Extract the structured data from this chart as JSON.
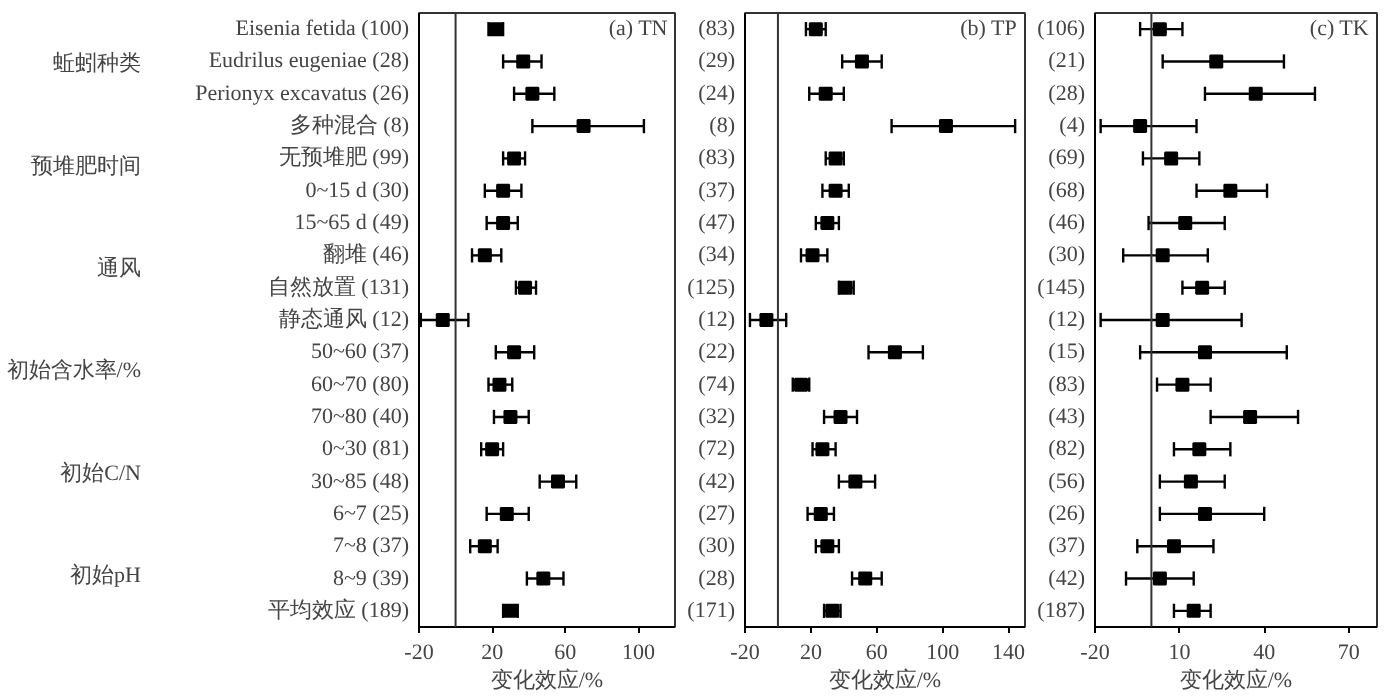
{
  "chart_data": [
    {
      "type": "scatter",
      "orientation": "horizontal",
      "xlabel": "变化效应/%",
      "marker": "square",
      "annotations": [
        "(a) TN",
        "蚯蚓种类",
        "预堆肥时间",
        "通风",
        "初始含水率/%",
        "初始C/N",
        "初始pH"
      ],
      "categories": [
        "Eisenia fetida (100)",
        "Eudrilus eugeniae (28)",
        "Perionyx excavatus (26)",
        "多种混合 (8)",
        "无预堆肥 (99)",
        "0~15 d (30)",
        "15~65 d (49)",
        "翻堆 (46)",
        "自然放置 (131)",
        "静态通风 (12)",
        "50~60 (37)",
        "60~70 (80)",
        "70~80 (40)",
        "0~30 (81)",
        "30~85 (48)",
        "6~7 (25)",
        "7~8 (37)",
        "8~9 (39)",
        "平均效应 (189)"
      ],
      "series": [
        {
          "color": "#000000",
          "values": [
            22,
            37,
            42,
            70,
            32,
            26,
            26,
            16,
            38,
            -7,
            32,
            24,
            30,
            20,
            56,
            28,
            16,
            48,
            30
          ],
          "errors": [
            [
              18,
              26
            ],
            [
              26,
              47
            ],
            [
              32,
              54
            ],
            [
              42,
              103
            ],
            [
              26,
              38
            ],
            [
              16,
              36
            ],
            [
              17,
              34
            ],
            [
              9,
              25
            ],
            [
              33,
              44
            ],
            [
              -19,
              7
            ],
            [
              22,
              43
            ],
            [
              18,
              31
            ],
            [
              21,
              40
            ],
            [
              14,
              26
            ],
            [
              46,
              66
            ],
            [
              17,
              40
            ],
            [
              8,
              23
            ],
            [
              39,
              59
            ],
            [
              26,
              34
            ]
          ]
        }
      ],
      "xlim": [
        -20,
        120
      ],
      "xticks": [
        -20,
        20,
        60,
        100
      ],
      "ref_lines": [
        {
          "axis": "x",
          "value": 0
        }
      ]
    },
    {
      "type": "scatter",
      "orientation": "horizontal",
      "annotations": [
        "(b) TP"
      ],
      "xlabel": "变化效应/%",
      "marker": "square",
      "categories": [
        "(83)",
        "(29)",
        "(24)",
        "(8)",
        "(83)",
        "(37)",
        "(47)",
        "(34)",
        "(125)",
        "(12)",
        "(22)",
        "(74)",
        "(32)",
        "(72)",
        "(42)",
        "(27)",
        "(30)",
        "(28)",
        "(171)"
      ],
      "series": [
        {
          "color": "#000000",
          "values": [
            23,
            51,
            29,
            102,
            35,
            35,
            30,
            21,
            41,
            -7,
            71,
            14,
            38,
            27,
            47,
            26,
            30,
            53,
            33
          ],
          "errors": [
            [
              17,
              29
            ],
            [
              39,
              63
            ],
            [
              19,
              40
            ],
            [
              69,
              144
            ],
            [
              29,
              40
            ],
            [
              27,
              43
            ],
            [
              23,
              37
            ],
            [
              14,
              30
            ],
            [
              37,
              46
            ],
            [
              -17,
              5
            ],
            [
              55,
              88
            ],
            [
              9,
              19
            ],
            [
              28,
              48
            ],
            [
              21,
              35
            ],
            [
              37,
              59
            ],
            [
              18,
              34
            ],
            [
              23,
              37
            ],
            [
              45,
              63
            ],
            [
              28,
              38
            ]
          ]
        }
      ],
      "xlim": [
        -20,
        150
      ],
      "xticks": [
        -20,
        20,
        60,
        100,
        140
      ],
      "ref_lines": [
        {
          "axis": "x",
          "value": 0
        }
      ]
    },
    {
      "type": "scatter",
      "orientation": "horizontal",
      "annotations": [
        "(c) TK"
      ],
      "xlabel": "变化效应/%",
      "marker": "square",
      "categories": [
        "(106)",
        "(21)",
        "(28)",
        "(4)",
        "(69)",
        "(68)",
        "(46)",
        "(30)",
        "(145)",
        "(12)",
        "(15)",
        "(83)",
        "(43)",
        "(82)",
        "(56)",
        "(26)",
        "(37)",
        "(42)",
        "(187)"
      ],
      "series": [
        {
          "color": "#000000",
          "values": [
            3,
            23,
            37,
            -4,
            7,
            28,
            12,
            4,
            18,
            4,
            19,
            11,
            35,
            17,
            14,
            19,
            8,
            3,
            15
          ],
          "errors": [
            [
              -4,
              11
            ],
            [
              4,
              47
            ],
            [
              19,
              58
            ],
            [
              -18,
              16
            ],
            [
              -3,
              17
            ],
            [
              16,
              41
            ],
            [
              -1,
              26
            ],
            [
              -10,
              20
            ],
            [
              11,
              26
            ],
            [
              -18,
              32
            ],
            [
              -4,
              48
            ],
            [
              2,
              21
            ],
            [
              21,
              52
            ],
            [
              8,
              28
            ],
            [
              3,
              26
            ],
            [
              3,
              40
            ],
            [
              -5,
              22
            ],
            [
              -9,
              15
            ],
            [
              8,
              21
            ]
          ]
        }
      ],
      "xlim": [
        -20,
        80
      ],
      "xticks": [
        -20,
        10,
        40,
        70
      ],
      "ref_lines": [
        {
          "axis": "x",
          "value": 0
        }
      ]
    }
  ]
}
